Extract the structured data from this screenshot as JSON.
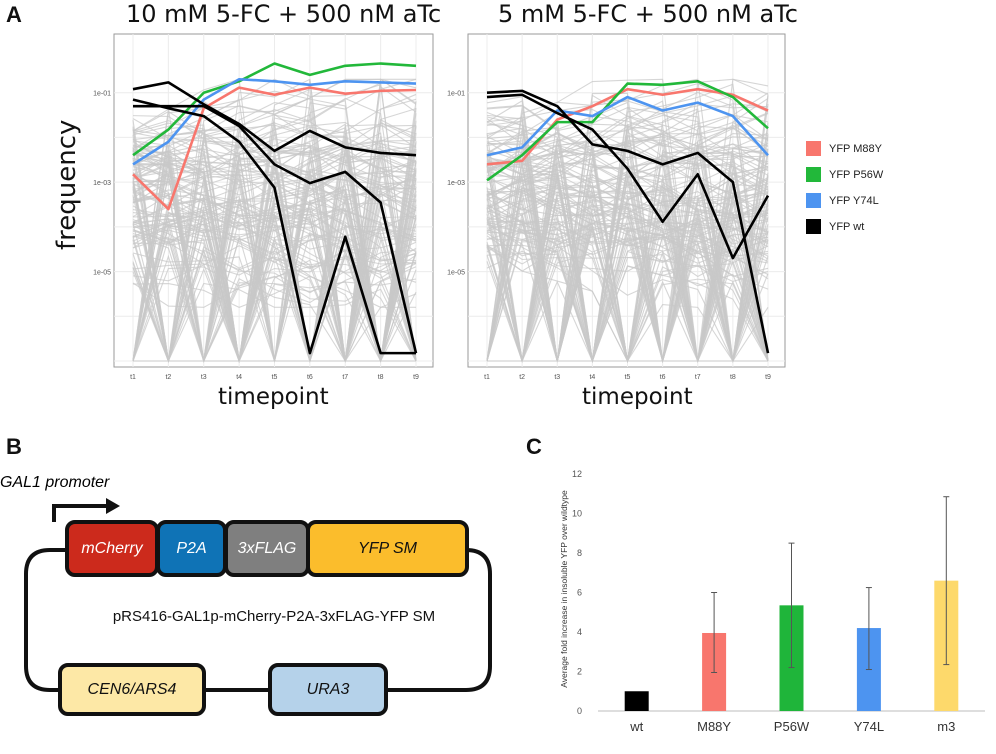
{
  "panel_a": {
    "letter": "A",
    "plot1_title": "10 mM 5-FC + 500 nM aTc",
    "plot2_title": "5 mM 5-FC + 500 nM aTc",
    "y_axis_title": "frequency",
    "x_axis_title": "timepoint",
    "y_tick_labels": [
      "1e-01",
      "1e-03",
      "1e-05"
    ],
    "x_tick_labels": [
      "t1",
      "t2",
      "t3",
      "t4",
      "t5",
      "t6",
      "t7",
      "t8",
      "t9"
    ],
    "legend": [
      {
        "label": "YFP M88Y",
        "color": "#f8766d"
      },
      {
        "label": "YFP P56W",
        "color": "#22b83a"
      },
      {
        "label": "YFP Y74L",
        "color": "#4d94f0"
      },
      {
        "label": "YFP wt",
        "color": "#000000"
      }
    ]
  },
  "panel_b": {
    "letter": "B",
    "promoter_label": "GAL1 promoter",
    "mcherry": "mCherry",
    "p2a": "P2A",
    "flag": "3xFLAG",
    "yfp": "YFP SM",
    "plasmid_name": "pRS416-GAL1p-mCherry-P2A-3xFLAG-YFP SM",
    "cen": "CEN6/ARS4",
    "ura": "URA3",
    "colors": {
      "mcherry": "#cc2a1c",
      "p2a": "#0f73b6",
      "flag": "#7f7f7f",
      "yfp": "#fbbd2c",
      "cen": "#fde8a6",
      "ura": "#b5d2ea"
    }
  },
  "panel_c": {
    "letter": "C",
    "ylabel": "Average fold increase in insoluble YFP over wildtype"
  },
  "chart_data": [
    {
      "type": "line",
      "title": "10 mM 5-FC + 500 nM aTc",
      "xlabel": "timepoint",
      "ylabel": "frequency",
      "x": [
        "t1",
        "t2",
        "t3",
        "t4",
        "t5",
        "t6",
        "t7",
        "t8",
        "t9"
      ],
      "y_scale": "log10",
      "ylim": [
        1e-07,
        1
      ],
      "series": [
        {
          "name": "YFP M88Y",
          "color": "#f8766d",
          "values": [
            0.0015,
            0.00025,
            0.045,
            0.13,
            0.09,
            0.13,
            0.095,
            0.11,
            0.115
          ]
        },
        {
          "name": "YFP P56W",
          "color": "#22b83a",
          "values": [
            0.004,
            0.015,
            0.1,
            0.18,
            0.45,
            0.25,
            0.4,
            0.45,
            0.4
          ]
        },
        {
          "name": "YFP Y74L",
          "color": "#4d94f0",
          "values": [
            0.0025,
            0.008,
            0.07,
            0.2,
            0.18,
            0.15,
            0.18,
            0.17,
            0.16
          ]
        },
        {
          "name": "YFP wt",
          "color": "#000000",
          "values": [
            0.12,
            0.17,
            0.055,
            0.02,
            0.005,
            0.014,
            0.006,
            0.0045,
            0.004
          ]
        },
        {
          "name": "YFP wt",
          "color": "#000000",
          "values": [
            0.07,
            0.045,
            0.03,
            0.008,
            0.00075,
            1.5e-07,
            6e-05,
            1.5e-07,
            1.5e-07
          ]
        },
        {
          "name": "YFP wt",
          "color": "#000000",
          "values": [
            0.05,
            0.05,
            0.05,
            0.018,
            0.0025,
            0.00095,
            0.0017,
            0.00035,
            1.5e-07
          ]
        }
      ]
    },
    {
      "type": "line",
      "title": "5 mM 5-FC + 500 nM aTc",
      "xlabel": "timepoint",
      "ylabel": "frequency",
      "x": [
        "t1",
        "t2",
        "t3",
        "t4",
        "t5",
        "t6",
        "t7",
        "t8",
        "t9"
      ],
      "y_scale": "log10",
      "ylim": [
        1e-07,
        1
      ],
      "series": [
        {
          "name": "YFP M88Y",
          "color": "#f8766d",
          "values": [
            0.0025,
            0.003,
            0.025,
            0.05,
            0.12,
            0.09,
            0.12,
            0.09,
            0.04
          ]
        },
        {
          "name": "YFP P56W",
          "color": "#22b83a",
          "values": [
            0.0011,
            0.004,
            0.022,
            0.022,
            0.16,
            0.15,
            0.18,
            0.08,
            0.016
          ]
        },
        {
          "name": "YFP Y74L",
          "color": "#4d94f0",
          "values": [
            0.004,
            0.006,
            0.04,
            0.03,
            0.08,
            0.04,
            0.06,
            0.03,
            0.004
          ]
        },
        {
          "name": "YFP wt",
          "color": "#000000",
          "values": [
            0.1,
            0.11,
            0.05,
            0.007,
            0.005,
            0.0025,
            0.0045,
            0.001,
            1.5e-07
          ]
        },
        {
          "name": "YFP wt",
          "color": "#000000",
          "values": [
            0.08,
            0.09,
            0.035,
            0.015,
            0.002,
            0.00013,
            0.0015,
            2e-05,
            0.0005
          ]
        }
      ]
    },
    {
      "type": "bar",
      "title": "",
      "xlabel": "",
      "ylabel": "Average fold increase in insoluble YFP over wildtype",
      "categories": [
        "wt",
        "M88Y",
        "P56W",
        "Y74L",
        "m3"
      ],
      "values": [
        1.0,
        3.95,
        5.35,
        4.2,
        6.6
      ],
      "error_low": [
        1.0,
        1.95,
        2.2,
        2.1,
        2.35
      ],
      "error_high": [
        1.0,
        6.0,
        8.5,
        6.25,
        10.85
      ],
      "colors": [
        "#000000",
        "#f8766d",
        "#1fb53a",
        "#4d94f0",
        "#fdd96b"
      ],
      "ylim": [
        0,
        12
      ],
      "yticks": [
        0,
        2,
        4,
        6,
        8,
        10,
        12
      ]
    }
  ]
}
